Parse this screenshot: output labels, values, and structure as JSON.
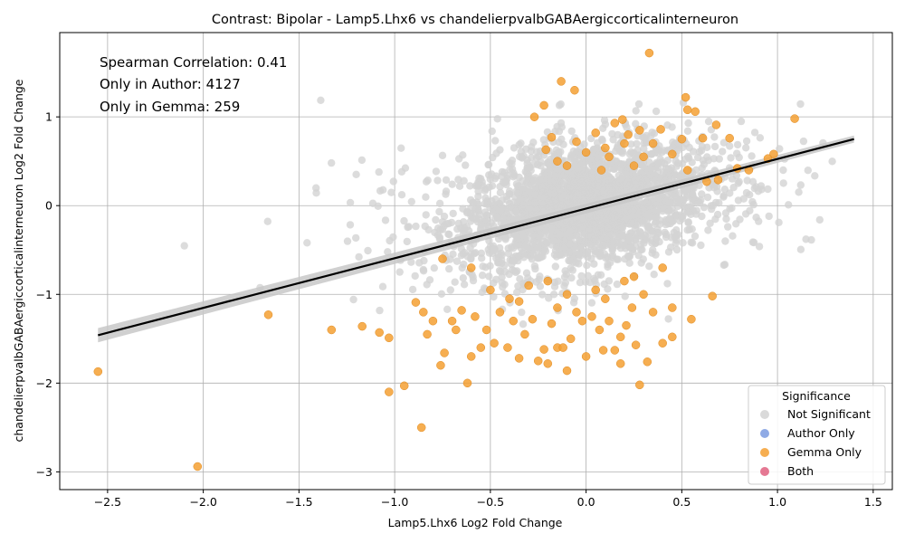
{
  "chart_data": {
    "type": "scatter",
    "title": "Contrast: Bipolar - Lamp5.Lhx6 vs chandelierpvalbGABAergiccorticalinterneuron",
    "xlabel": "Lamp5.Lhx6 Log2 Fold Change",
    "ylabel": "chandelierpvalbGABAergiccorticalinterneuron Log2 Fold Change",
    "xlim": [
      -2.75,
      1.6
    ],
    "ylim": [
      -3.2,
      1.95
    ],
    "xticks": [
      -2.5,
      -2.0,
      -1.5,
      -1.0,
      -0.5,
      0.0,
      0.5,
      1.0,
      1.5
    ],
    "xtick_labels": [
      "−2.5",
      "−2.0",
      "−1.5",
      "−1.0",
      "−0.5",
      "0.0",
      "0.5",
      "1.0",
      "1.5"
    ],
    "yticks": [
      -3,
      -2,
      -1,
      0,
      1
    ],
    "ytick_labels": [
      "−3",
      "−2",
      "−1",
      "0",
      "1"
    ],
    "grid": true,
    "annotations": [
      "Spearman Correlation: 0.41",
      "Only in Author: 4127",
      "Only in Gemma: 259"
    ],
    "regression": {
      "x": [
        -2.55,
        1.4
      ],
      "y": [
        -1.46,
        0.75
      ],
      "ci_half_width": [
        0.08,
        0.04
      ]
    },
    "legend": {
      "title": "Significance",
      "location": "lower-right",
      "entries": [
        {
          "label": "Not Significant",
          "color": "#d3d3d3"
        },
        {
          "label": "Author Only",
          "color": "#7b9be0"
        },
        {
          "label": "Gemma Only",
          "color": "#f5a033"
        },
        {
          "label": "Both",
          "color": "#e06080"
        }
      ]
    },
    "series": [
      {
        "name": "Gemma Only",
        "color": "#f5a033",
        "points": [
          [
            0.33,
            1.72
          ],
          [
            -0.13,
            1.4
          ],
          [
            -0.06,
            1.3
          ],
          [
            -0.22,
            1.13
          ],
          [
            0.52,
            1.22
          ],
          [
            0.57,
            1.06
          ],
          [
            0.53,
            1.08
          ],
          [
            -0.27,
            1.0
          ],
          [
            0.68,
            0.91
          ],
          [
            1.09,
            0.98
          ],
          [
            0.19,
            0.97
          ],
          [
            0.15,
            0.93
          ],
          [
            0.39,
            0.86
          ],
          [
            0.28,
            0.85
          ],
          [
            0.61,
            0.76
          ],
          [
            0.75,
            0.76
          ],
          [
            0.22,
            0.8
          ],
          [
            0.05,
            0.82
          ],
          [
            0.98,
            0.58
          ],
          [
            0.95,
            0.53
          ],
          [
            0.85,
            0.4
          ],
          [
            0.79,
            0.42
          ],
          [
            0.53,
            0.4
          ],
          [
            0.69,
            0.29
          ],
          [
            0.63,
            0.27
          ],
          [
            -0.21,
            0.63
          ],
          [
            -0.18,
            0.77
          ],
          [
            0.0,
            0.6
          ],
          [
            0.1,
            0.65
          ],
          [
            0.2,
            0.7
          ],
          [
            0.3,
            0.55
          ],
          [
            -0.1,
            0.45
          ],
          [
            0.45,
            0.58
          ],
          [
            0.08,
            0.4
          ],
          [
            0.25,
            0.45
          ],
          [
            -0.15,
            0.5
          ],
          [
            0.35,
            0.7
          ],
          [
            0.12,
            0.55
          ],
          [
            0.5,
            0.75
          ],
          [
            -0.05,
            0.72
          ],
          [
            -2.55,
            -1.87
          ],
          [
            -2.03,
            -2.94
          ],
          [
            -1.66,
            -1.23
          ],
          [
            -1.33,
            -1.4
          ],
          [
            -1.17,
            -1.36
          ],
          [
            -1.08,
            -1.43
          ],
          [
            -1.03,
            -1.49
          ],
          [
            -1.03,
            -2.1
          ],
          [
            -0.95,
            -2.03
          ],
          [
            -0.86,
            -2.5
          ],
          [
            -0.89,
            -1.09
          ],
          [
            -0.85,
            -1.2
          ],
          [
            -0.83,
            -1.45
          ],
          [
            -0.8,
            -1.3
          ],
          [
            -0.76,
            -1.8
          ],
          [
            -0.74,
            -1.66
          ],
          [
            -0.7,
            -1.3
          ],
          [
            -0.68,
            -1.4
          ],
          [
            -0.62,
            -2.0
          ],
          [
            -0.6,
            -1.7
          ],
          [
            -0.58,
            -1.25
          ],
          [
            -0.55,
            -1.6
          ],
          [
            -0.52,
            -1.4
          ],
          [
            -0.48,
            -1.55
          ],
          [
            -0.45,
            -1.2
          ],
          [
            -0.41,
            -1.6
          ],
          [
            -0.38,
            -1.3
          ],
          [
            -0.35,
            -1.72
          ],
          [
            -0.32,
            -1.45
          ],
          [
            -0.28,
            -1.28
          ],
          [
            -0.25,
            -1.75
          ],
          [
            -0.22,
            -1.62
          ],
          [
            -0.2,
            -1.78
          ],
          [
            -0.18,
            -1.33
          ],
          [
            -0.15,
            -1.6
          ],
          [
            -0.12,
            -1.6
          ],
          [
            -0.1,
            -1.86
          ],
          [
            -0.08,
            -1.5
          ],
          [
            -0.05,
            -1.2
          ],
          [
            -0.02,
            -1.3
          ],
          [
            0.0,
            -1.7
          ],
          [
            0.03,
            -1.25
          ],
          [
            0.07,
            -1.4
          ],
          [
            0.09,
            -1.63
          ],
          [
            0.12,
            -1.3
          ],
          [
            0.15,
            -1.63
          ],
          [
            0.18,
            -1.48
          ],
          [
            0.18,
            -1.78
          ],
          [
            0.21,
            -1.35
          ],
          [
            0.24,
            -1.15
          ],
          [
            0.26,
            -1.57
          ],
          [
            0.28,
            -2.02
          ],
          [
            0.32,
            -1.76
          ],
          [
            0.35,
            -1.2
          ],
          [
            0.4,
            -1.55
          ],
          [
            0.45,
            -1.48
          ],
          [
            0.55,
            -1.28
          ],
          [
            0.66,
            -1.02
          ],
          [
            0.4,
            -0.7
          ],
          [
            0.45,
            -1.15
          ],
          [
            -0.75,
            -0.6
          ],
          [
            -0.6,
            -0.7
          ],
          [
            -0.5,
            -0.95
          ],
          [
            -0.4,
            -1.05
          ],
          [
            -0.3,
            -0.9
          ],
          [
            -0.2,
            -0.85
          ],
          [
            -0.1,
            -1.0
          ],
          [
            0.1,
            -1.05
          ],
          [
            0.2,
            -0.85
          ],
          [
            0.3,
            -1.0
          ],
          [
            -0.35,
            -1.08
          ],
          [
            -0.65,
            -1.18
          ],
          [
            -0.15,
            -1.15
          ],
          [
            0.05,
            -0.95
          ],
          [
            0.25,
            -0.8
          ]
        ]
      }
    ]
  }
}
